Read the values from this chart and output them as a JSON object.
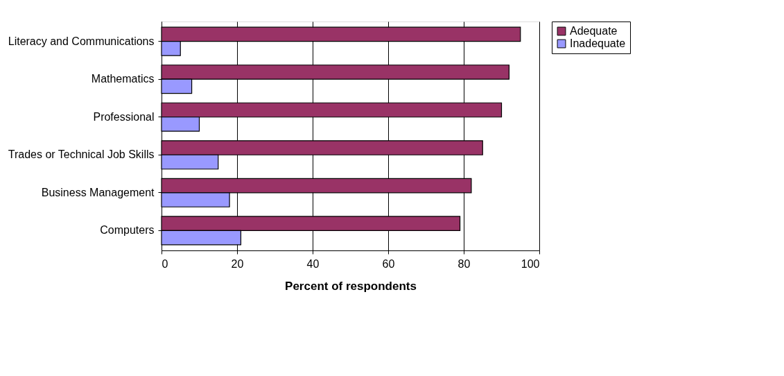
{
  "chart_data": {
    "type": "bar",
    "orientation": "horizontal",
    "xlabel": "Percent of respondents",
    "categories": [
      "Literacy and Communications",
      "Mathematics",
      "Professional",
      "Trades or Technical Job Skills",
      "Business Management",
      "Computers"
    ],
    "series": [
      {
        "name": "Adequate",
        "color": "#993366",
        "values": [
          95,
          92,
          90,
          85,
          82,
          79
        ]
      },
      {
        "name": "Inadequate",
        "color": "#9999ff",
        "values": [
          5,
          8,
          10,
          15,
          18,
          21
        ]
      }
    ],
    "xlim": [
      0,
      100
    ],
    "xticks": [
      0,
      20,
      40,
      60,
      80,
      100
    ],
    "grid": "x",
    "legend": "right"
  }
}
